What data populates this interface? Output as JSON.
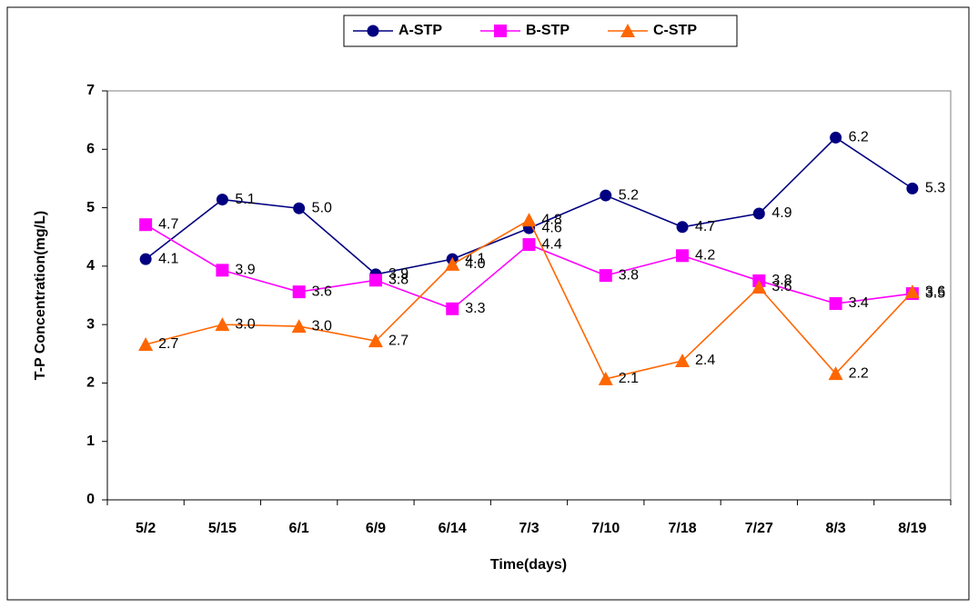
{
  "chart_data": {
    "type": "line",
    "x_label": "Time(days)",
    "y_label": "T-P Concentration(mg/L)",
    "categories": [
      "5/2",
      "5/15",
      "6/1",
      "6/9",
      "6/14",
      "7/3",
      "7/10",
      "7/18",
      "7/27",
      "8/3",
      "8/19"
    ],
    "ylim": [
      0,
      7
    ],
    "yticks": [
      0,
      1,
      2,
      3,
      4,
      5,
      6,
      7
    ],
    "legend": "top",
    "series": [
      {
        "name": "A-STP",
        "color": "#000080",
        "marker": "circle",
        "values": [
          4.12,
          5.14,
          4.99,
          3.86,
          4.12,
          4.65,
          5.21,
          4.67,
          4.9,
          6.2,
          5.33
        ],
        "value_labels": [
          "4.1",
          "5.1",
          "5.0",
          "3.9",
          "4.1",
          "4.6",
          "5.2",
          "4.7",
          "4.9",
          "6.2",
          "5.3"
        ]
      },
      {
        "name": "B-STP",
        "color": "#ff00ff",
        "marker": "square",
        "values": [
          4.71,
          3.93,
          3.56,
          3.76,
          3.27,
          4.37,
          3.84,
          4.18,
          3.75,
          3.36,
          3.53
        ],
        "value_labels": [
          "4.7",
          "3.9",
          "3.6",
          "3.8",
          "3.3",
          "4.4",
          "3.8",
          "4.2",
          "3.8",
          "3.4",
          "3.5"
        ]
      },
      {
        "name": "C-STP",
        "color": "#ff6600",
        "marker": "triangle",
        "values": [
          2.66,
          3.0,
          2.97,
          2.72,
          4.03,
          4.79,
          2.07,
          2.38,
          3.64,
          2.16,
          3.56
        ],
        "value_labels": [
          "2.7",
          "3.0",
          "3.0",
          "2.7",
          "4.0",
          "4.8",
          "2.1",
          "2.4",
          "3.6",
          "2.2",
          "3.6"
        ]
      }
    ]
  }
}
